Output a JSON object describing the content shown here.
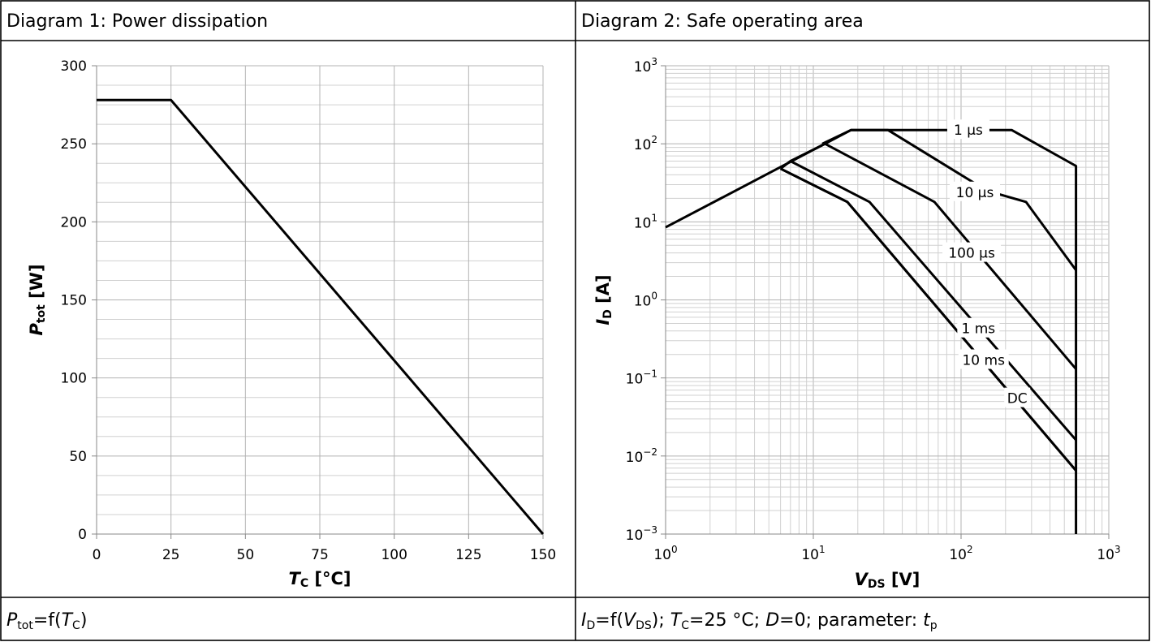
{
  "captions": {
    "left_title": "Diagram 1: Power dissipation",
    "right_title": "Diagram 2: Safe operating area",
    "left_formula": {
      "sym": "P",
      "sub": "tot",
      "eq": "=f(",
      "arg": "T",
      "argsub": "C",
      "close": ")"
    },
    "right_formula": {
      "sym": "I",
      "sub": "D",
      "eq": "=f(",
      "arg": "V",
      "argsub": "DS",
      "mid": "); ",
      "tc_sym": "T",
      "tc_sub": "C",
      "tc_val": "=25 °C; ",
      "d_sym": "D",
      "d_val": "=0; parameter: ",
      "tp_sym": "t",
      "tp_sub": "p"
    }
  },
  "chart_data": [
    {
      "type": "line",
      "xlabel": "TC [°C]",
      "ylabel": "Ptot [W]",
      "axis_text": {
        "x_sym": "T",
        "x_sub": "C",
        "x_unit": " [°C]",
        "y_sym": "P",
        "y_sub": "tot",
        "y_unit": " [W]"
      },
      "xlim": [
        0,
        150
      ],
      "ylim": [
        0,
        300
      ],
      "xticks": [
        0,
        25,
        50,
        75,
        100,
        125,
        150
      ],
      "yticks": [
        0,
        50,
        100,
        150,
        200,
        250,
        300
      ],
      "grid": true,
      "series": [
        {
          "x": [
            0,
            25,
            150
          ],
          "y": [
            278,
            278,
            0
          ]
        }
      ]
    },
    {
      "type": "line",
      "xlabel": "VDS [V]",
      "ylabel": "ID [A]",
      "axis_text": {
        "x_sym": "V",
        "x_sub": "DS",
        "x_unit": " [V]",
        "y_sym": "I",
        "y_sub": "D",
        "y_unit": " [A]"
      },
      "xscale": "log",
      "yscale": "log",
      "xlim": [
        1,
        1000
      ],
      "ylim": [
        0.001,
        1000
      ],
      "xtick_exps": [
        0,
        1,
        2,
        3
      ],
      "ytick_exps": [
        -3,
        -2,
        -1,
        0,
        1,
        2,
        3
      ],
      "tick_base": "10",
      "grid": true,
      "series": [
        {
          "name": "1 µs",
          "x": [
            1,
            18,
            170,
            220,
            600,
            600
          ],
          "y": [
            8.5,
            150,
            150,
            150,
            52,
            0.001
          ]
        },
        {
          "name": "10 µs",
          "x": [
            11.5,
            18,
            32,
            150,
            275,
            600
          ],
          "y": [
            100,
            150,
            150,
            25,
            18,
            2.4
          ]
        },
        {
          "name": "100 µs",
          "x": [
            7,
            12,
            66,
            600
          ],
          "y": [
            60,
            100,
            18,
            0.13
          ]
        },
        {
          "name": "1 ms",
          "x": [
            6,
            7,
            24,
            600
          ],
          "y": [
            48,
            60,
            18,
            0.016
          ]
        },
        {
          "name": "10 ms",
          "x": [
            6,
            17,
            600
          ],
          "y": [
            48,
            18,
            0.0065
          ]
        },
        {
          "name": "DC",
          "x": [
            6,
            17,
            600
          ],
          "y": [
            48,
            18,
            0.0065
          ]
        }
      ],
      "labels": [
        {
          "text": "1 µs",
          "x": 112,
          "y": 150
        },
        {
          "text": "10 µs",
          "x": 124,
          "y": 24
        },
        {
          "text": "100 µs",
          "x": 118,
          "y": 4.0
        },
        {
          "text": "1 ms",
          "x": 131,
          "y": 0.43
        },
        {
          "text": "10 ms",
          "x": 142,
          "y": 0.17
        },
        {
          "text": "DC",
          "x": 240,
          "y": 0.055
        }
      ]
    }
  ]
}
